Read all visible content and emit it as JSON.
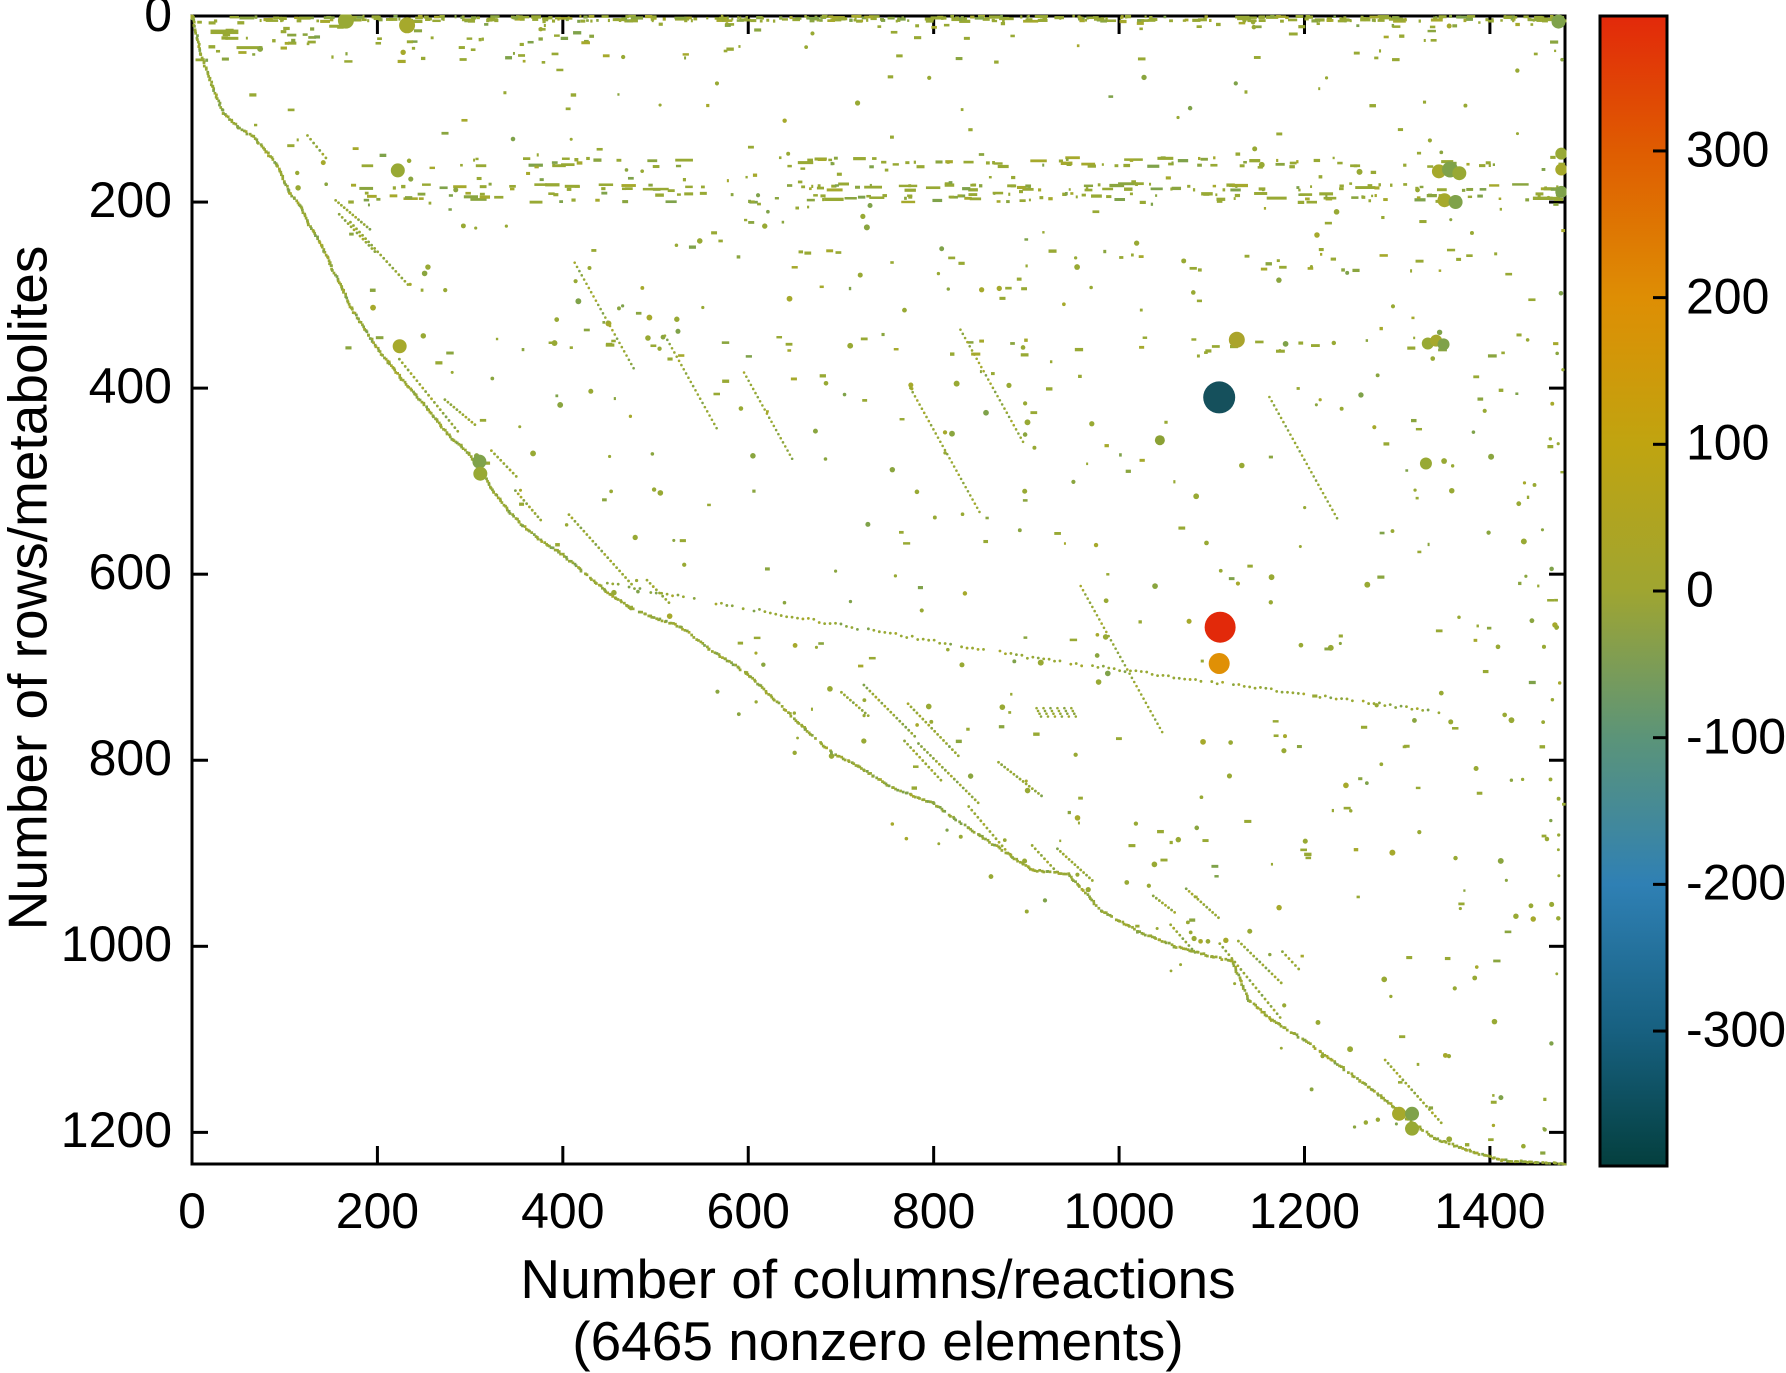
{
  "page": {
    "background": "#ffffff"
  },
  "chart_data": {
    "type": "scatter",
    "subtype": "sparsity-spy-plot",
    "title": "",
    "xlabel": "Number of columns/reactions",
    "xlabel_note": "(6465 nonzero elements)",
    "ylabel": "Number of rows/metabolites",
    "nonzero_elements": 6465,
    "xlim": [
      0,
      1481
    ],
    "ylim_inverted": [
      0,
      1234
    ],
    "x_ticks": [
      0,
      200,
      400,
      600,
      800,
      1000,
      1200,
      1400
    ],
    "y_ticks": [
      0,
      200,
      400,
      600,
      800,
      1000,
      1200
    ],
    "grid": false,
    "legend": false,
    "marker_base_color": "#98a934",
    "marker_color_variants": [
      "#98a934",
      "#8aa53f",
      "#a6a92c",
      "#7fa24a"
    ],
    "colorbar": {
      "position": "right",
      "ticks": [
        300,
        200,
        100,
        0,
        -100,
        -200,
        -300
      ],
      "value_range": [
        -392,
        392
      ],
      "gradient_top_to_bottom": [
        {
          "at": 0.0,
          "color": "#e2290a"
        },
        {
          "at": 0.117,
          "color": "#df5c01"
        },
        {
          "at": 0.245,
          "color": "#de8e04"
        },
        {
          "at": 0.372,
          "color": "#c0a410"
        },
        {
          "at": 0.5,
          "color": "#9fa531"
        },
        {
          "at": 0.628,
          "color": "#5b9479"
        },
        {
          "at": 0.755,
          "color": "#2f80b4"
        },
        {
          "at": 0.883,
          "color": "#176080"
        },
        {
          "at": 1.0,
          "color": "#043f3e"
        }
      ]
    },
    "notable_points": [
      {
        "x": 1108,
        "y": 410,
        "value_est": -340,
        "color": "#15505c",
        "r": 16
      },
      {
        "x": 1109,
        "y": 657,
        "value_est": 385,
        "color": "#e2290a",
        "r": 15.5
      },
      {
        "x": 1108,
        "y": 696,
        "value_est": 205,
        "color": "#e09005",
        "r": 10.5
      },
      {
        "x": 1127,
        "y": 348,
        "value_est": 60,
        "color": "#aaa42c",
        "r": 8
      },
      {
        "x": 1044,
        "y": 456,
        "value_est": 5,
        "color": "#8ba135",
        "r": 5
      }
    ],
    "medium_dots": [
      [
        166,
        5,
        8
      ],
      [
        232,
        10,
        8
      ],
      [
        1474,
        6,
        7
      ],
      [
        222,
        166,
        7
      ],
      [
        224,
        355,
        7
      ],
      [
        310,
        479,
        7
      ],
      [
        311,
        492,
        7
      ],
      [
        1345,
        167,
        7
      ],
      [
        1357,
        165,
        8
      ],
      [
        1367,
        169,
        7
      ],
      [
        1351,
        198,
        7
      ],
      [
        1363,
        200,
        7
      ],
      [
        1477,
        148,
        6
      ],
      [
        1477,
        165,
        6
      ],
      [
        1477,
        189,
        6
      ],
      [
        1333,
        352,
        6
      ],
      [
        1342,
        349,
        6
      ],
      [
        1350,
        353,
        6
      ],
      [
        1331,
        481,
        6
      ],
      [
        1302,
        1180,
        7
      ],
      [
        1316,
        1180,
        7
      ],
      [
        1316,
        1196,
        7
      ]
    ],
    "left_dashes": [
      [
        20,
        17,
        30,
        4.5
      ],
      [
        48,
        34,
        28,
        3
      ],
      [
        148,
        11,
        20,
        3
      ],
      [
        36,
        24,
        14,
        3
      ]
    ],
    "diagonal_anchors": [
      [
        0,
        0
      ],
      [
        10,
        42
      ],
      [
        22,
        76
      ],
      [
        34,
        104
      ],
      [
        50,
        120
      ],
      [
        66,
        130
      ],
      [
        80,
        146
      ],
      [
        92,
        160
      ],
      [
        104,
        188
      ],
      [
        118,
        206
      ],
      [
        126,
        224
      ],
      [
        140,
        246
      ],
      [
        150,
        269
      ],
      [
        161,
        291
      ],
      [
        172,
        314
      ],
      [
        186,
        336
      ],
      [
        199,
        356
      ],
      [
        212,
        372
      ],
      [
        226,
        390
      ],
      [
        240,
        406
      ],
      [
        254,
        422
      ],
      [
        268,
        440
      ],
      [
        282,
        456
      ],
      [
        298,
        470
      ],
      [
        312,
        489
      ],
      [
        326,
        512
      ],
      [
        342,
        533
      ],
      [
        357,
        548
      ],
      [
        374,
        562
      ],
      [
        396,
        576
      ],
      [
        420,
        596
      ],
      [
        446,
        618
      ],
      [
        470,
        634
      ],
      [
        494,
        645
      ],
      [
        526,
        656
      ],
      [
        558,
        680
      ],
      [
        598,
        706
      ],
      [
        634,
        740
      ],
      [
        662,
        767
      ],
      [
        690,
        792
      ],
      [
        718,
        806
      ],
      [
        756,
        830
      ],
      [
        799,
        846
      ],
      [
        850,
        881
      ],
      [
        907,
        918
      ],
      [
        945,
        922
      ],
      [
        980,
        961
      ],
      [
        1020,
        984
      ],
      [
        1060,
        1000
      ],
      [
        1100,
        1011
      ],
      [
        1122,
        1016
      ],
      [
        1140,
        1058
      ],
      [
        1165,
        1079
      ],
      [
        1200,
        1101
      ],
      [
        1230,
        1122
      ],
      [
        1260,
        1145
      ],
      [
        1284,
        1162
      ],
      [
        1310,
        1185
      ],
      [
        1340,
        1206
      ],
      [
        1375,
        1219
      ],
      [
        1412,
        1230
      ],
      [
        1481,
        1234
      ]
    ],
    "secondary_line_anchors": [
      [
        448,
        610
      ],
      [
        700,
        655
      ],
      [
        907,
        690
      ],
      [
        1100,
        716
      ],
      [
        1345,
        748
      ]
    ],
    "pattern_seed": 9,
    "densities": {
      "top_band": 380,
      "upper_rows": 85,
      "band_160_200": 300,
      "band_260": 30,
      "band_350": 44,
      "scatter": 560,
      "echo_runs": 26,
      "steep_runs": 7,
      "stray_below": 30,
      "right_edge_column": 20
    }
  }
}
